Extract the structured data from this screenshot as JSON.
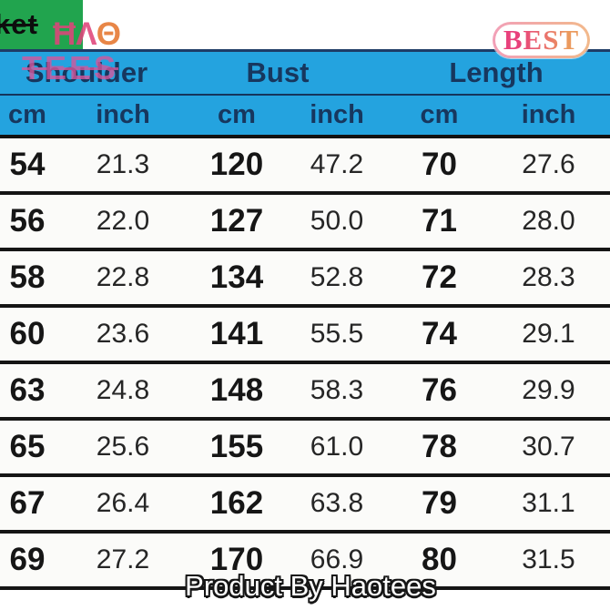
{
  "branding": {
    "corner_text": "ket",
    "logo_top_main": "ĦΛ",
    "logo_top_theta": "Θ",
    "logo_bottom": "TEES",
    "badge_label": "BEST"
  },
  "table": {
    "group_labels": [
      "Shoulder",
      "Bust",
      "Length"
    ],
    "units": [
      "cm",
      "inch",
      "cm",
      "inch",
      "cm",
      "inch"
    ],
    "rows": [
      [
        "54",
        "21.3",
        "120",
        "47.2",
        "70",
        "27.6"
      ],
      [
        "56",
        "22.0",
        "127",
        "50.0",
        "71",
        "28.0"
      ],
      [
        "58",
        "22.8",
        "134",
        "52.8",
        "72",
        "28.3"
      ],
      [
        "60",
        "23.6",
        "141",
        "55.5",
        "74",
        "29.1"
      ],
      [
        "63",
        "24.8",
        "148",
        "58.3",
        "76",
        "29.9"
      ],
      [
        "65",
        "25.6",
        "155",
        "61.0",
        "78",
        "30.7"
      ],
      [
        "67",
        "26.4",
        "162",
        "63.8",
        "79",
        "31.1"
      ],
      [
        "69",
        "27.2",
        "170",
        "66.9",
        "80",
        "31.5"
      ]
    ]
  },
  "footer": {
    "watermark": "Product By Haotees"
  },
  "colors": {
    "header_blue": "#24A3DF",
    "corner_green": "#21A44E",
    "header_text_navy": "#17375E",
    "logo_pink": "#E0457B",
    "logo_orange": "#E5762E",
    "badge_gradient_start": "#E8417C",
    "badge_gradient_end": "#EB9A5E"
  }
}
